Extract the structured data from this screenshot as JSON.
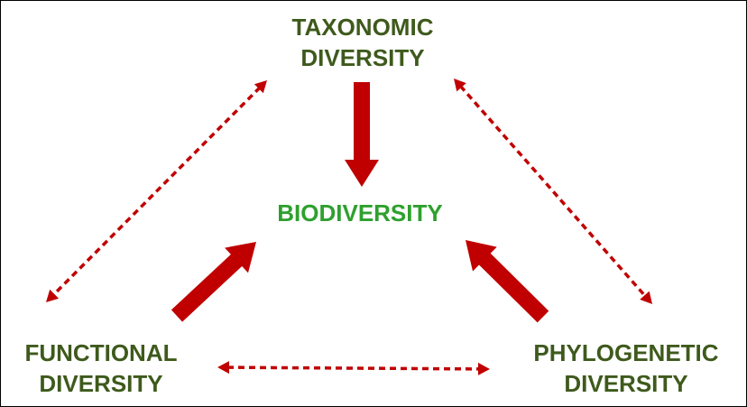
{
  "colors": {
    "node_text": "#3e5a1c",
    "center_text": "#2ea02e",
    "arrow": "#c00000"
  },
  "nodes": {
    "taxonomic": {
      "line1": "TAXONOMIC",
      "line2": "DIVERSITY"
    },
    "biodiversity": {
      "label": "BIODIVERSITY"
    },
    "functional": {
      "line1": "FUNCTIONAL",
      "line2": "DIVERSITY"
    },
    "phylogenetic": {
      "line1": "PHYLOGENETIC",
      "line2": "DIVERSITY"
    }
  },
  "edges": [
    {
      "from": "taxonomic",
      "to": "biodiversity",
      "style": "solid",
      "direction": "one-way"
    },
    {
      "from": "functional",
      "to": "biodiversity",
      "style": "solid",
      "direction": "one-way"
    },
    {
      "from": "phylogenetic",
      "to": "biodiversity",
      "style": "solid",
      "direction": "one-way"
    },
    {
      "from": "taxonomic",
      "to": "functional",
      "style": "dashed",
      "direction": "two-way"
    },
    {
      "from": "taxonomic",
      "to": "phylogenetic",
      "style": "dashed",
      "direction": "two-way"
    },
    {
      "from": "functional",
      "to": "phylogenetic",
      "style": "dashed",
      "direction": "two-way"
    }
  ]
}
